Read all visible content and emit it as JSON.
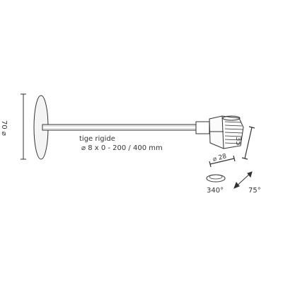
{
  "labels": {
    "rod_title": "tige rigide",
    "rod_dims": "⌀ 8 x 0 - 200 / 400 mm",
    "base_diameter": "70 ⌀",
    "head_height": "35",
    "head_diameter": "⌀ 28",
    "rotation": "340°",
    "tilt": "75°"
  },
  "colors": {
    "line": "#333333",
    "fill": "#f2f2f2"
  }
}
